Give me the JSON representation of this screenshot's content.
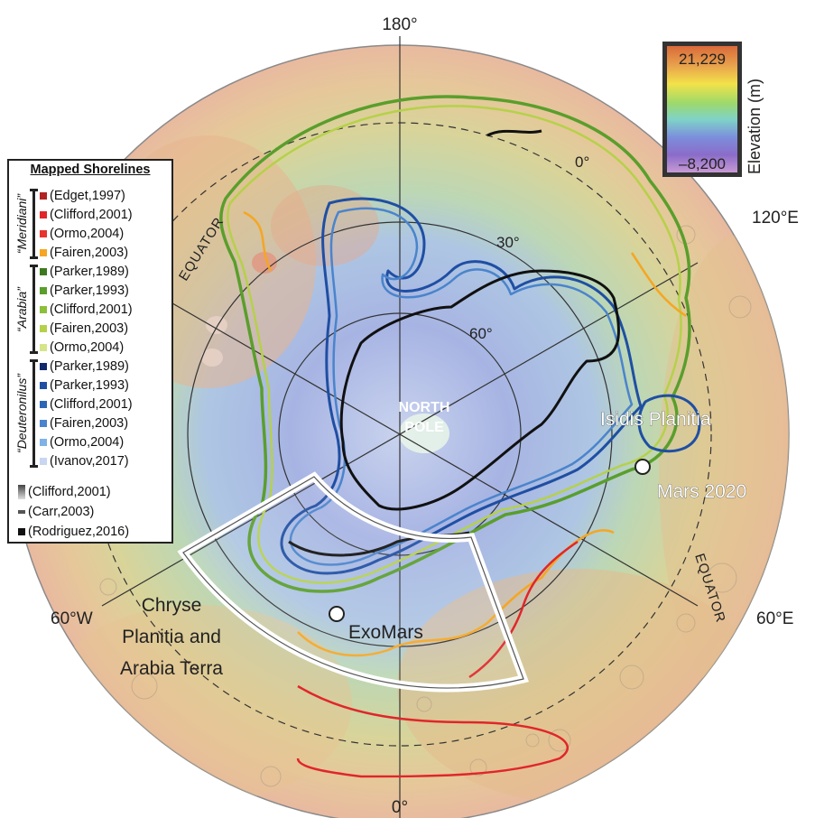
{
  "map": {
    "pole_label_line1": "NORTH",
    "pole_label_line2": "POLE",
    "longitude_labels": {
      "top": "180°",
      "bottom": "0°",
      "left": "60°W",
      "right": "60°E",
      "upper_right": "120°E"
    },
    "latitude_labels": {
      "lat0": "0°",
      "lat30": "30°",
      "lat60": "60°"
    },
    "equator_label": "EQUATOR",
    "sites": {
      "isidis": "Isidis Planitia",
      "mars2020": "Mars 2020",
      "exomars": "ExoMars"
    },
    "region_label": {
      "line1": "Chryse",
      "line2": "Planitia and",
      "line3": "Arabia Terra"
    }
  },
  "elevation_scale": {
    "title": "Elevation (m)",
    "max_label": "21,229",
    "min_label": "–8,200",
    "max_value": 21229,
    "min_value": -8200,
    "colors": [
      "#d96a3a",
      "#e8a04c",
      "#f3e24a",
      "#9dd96a",
      "#7fd3c8",
      "#7c8fdc",
      "#8a6cc9",
      "#c89ad4"
    ]
  },
  "legend": {
    "title": "Mapped Shorelines",
    "groups": [
      {
        "name": "“Meridiani”",
        "items": [
          {
            "label": "(Edget,1997)",
            "color": "#b22222"
          },
          {
            "label": "(Clifford,2001)",
            "color": "#e0262a"
          },
          {
            "label": "(Ormo,2004)",
            "color": "#e8332f"
          },
          {
            "label": "(Fairen,2003)",
            "color": "#f5a623"
          }
        ]
      },
      {
        "name": "“Arabia”",
        "items": [
          {
            "label": "(Parker,1989)",
            "color": "#3d7a1f"
          },
          {
            "label": "(Parker,1993)",
            "color": "#5a9e2c"
          },
          {
            "label": "(Clifford,2001)",
            "color": "#8cbf3a"
          },
          {
            "label": "(Fairen,2003)",
            "color": "#b5d14a"
          },
          {
            "label": "(Ormo,2004)",
            "color": "#d6e58a"
          }
        ]
      },
      {
        "name": "“Deuteronilus”",
        "items": [
          {
            "label": "(Parker,1989)",
            "color": "#102a6b"
          },
          {
            "label": "(Parker,1993)",
            "color": "#1f4fa3"
          },
          {
            "label": "(Clifford,2001)",
            "color": "#2d66b5"
          },
          {
            "label": "(Fairen,2003)",
            "color": "#4a84cc"
          },
          {
            "label": "(Ormo,2004)",
            "color": "#7fb2e6"
          },
          {
            "label": "(Ivanov,2017)",
            "color": "#c7d6f2"
          }
        ]
      }
    ],
    "others": [
      {
        "label": "(Clifford,2001)",
        "color": "#9a9a9a"
      },
      {
        "label": "(Carr,2003)",
        "color": "#555555"
      },
      {
        "label": "(Rodriguez,2016)",
        "color": "#111111"
      }
    ]
  }
}
